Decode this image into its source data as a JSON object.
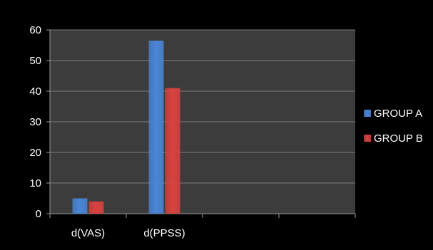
{
  "chart_data": {
    "type": "bar",
    "categories": [
      "d(VAS)",
      "d(PPSS)",
      "",
      ""
    ],
    "series": [
      {
        "name": "GROUP A",
        "values": [
          5,
          56.5,
          null,
          null
        ],
        "color": "#4a86d8"
      },
      {
        "name": "GROUP B",
        "values": [
          4,
          41,
          null,
          null
        ],
        "color": "#d9423f"
      }
    ],
    "y_ticks": [
      "0",
      "10",
      "20",
      "30",
      "40",
      "50",
      "60"
    ],
    "ylim": [
      0,
      60
    ],
    "grid": true,
    "legend_position": "right",
    "title": "",
    "xlabel": "",
    "ylabel": ""
  },
  "colors": {
    "page_background": "#000000",
    "plot_background": "#3c3c3c",
    "gridline": "#7a7a7a",
    "axis": "#9a9a9a",
    "text": "#ffffff"
  }
}
